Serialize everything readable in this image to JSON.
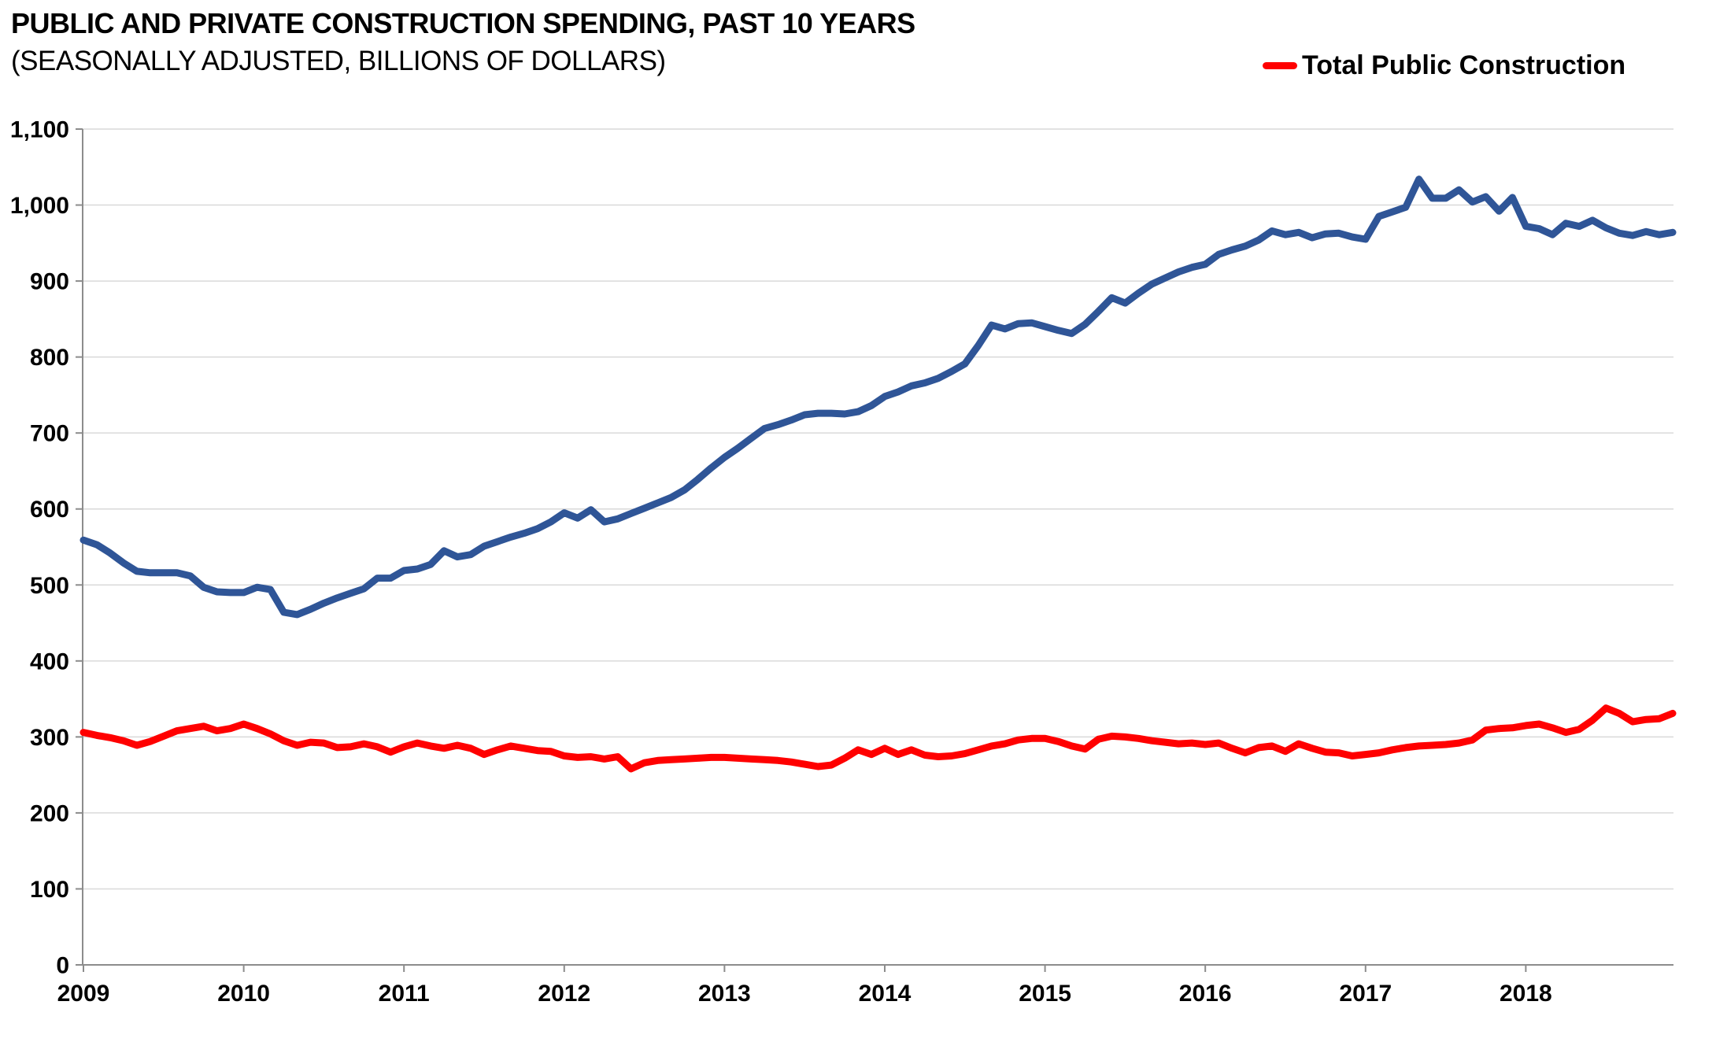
{
  "header": {
    "title": "PUBLIC AND PRIVATE CONSTRUCTION SPENDING, PAST 10 YEARS",
    "subtitle": "(SEASONALLY ADJUSTED, BILLIONS OF DOLLARS)"
  },
  "legend": {
    "label": "Total Public Construction",
    "color": "#FF0000"
  },
  "chart_data": {
    "type": "line",
    "title": "PUBLIC AND PRIVATE CONSTRUCTION SPENDING, PAST 10 YEARS",
    "subtitle": "(SEASONALLY ADJUSTED, BILLIONS OF DOLLARS)",
    "frequency": "monthly",
    "x_start": "2009-01",
    "x_end": "2018-12",
    "ylim": [
      0,
      1100
    ],
    "y_step": 100,
    "grid": "horizontal",
    "legend_position": "top-right",
    "y_tick_labels": [
      "0",
      "100",
      "200",
      "300",
      "400",
      "500",
      "600",
      "700",
      "800",
      "900",
      "1,000",
      "1,100"
    ],
    "x_tick_labels": [
      "2009",
      "2010",
      "2011",
      "2012",
      "2013",
      "2014",
      "2015",
      "2016",
      "2017",
      "2018"
    ],
    "colors": {
      "public_series": "#FF0000",
      "private_series": "#2F5597",
      "grid": "#D9D9D9",
      "axis": "#8C8C8C",
      "text": "#000000"
    },
    "series": [
      {
        "name": "unlabeled-blue-line",
        "in_legend": false,
        "color": "#2F5597",
        "values": [
          559,
          553,
          542,
          529,
          518,
          516,
          516,
          516,
          512,
          497,
          491,
          490,
          490,
          497,
          494,
          464,
          461,
          468,
          476,
          483,
          489,
          495,
          509,
          509,
          519,
          521,
          527,
          545,
          537,
          540,
          551,
          557,
          563,
          568,
          574,
          583,
          595,
          588,
          599,
          583,
          587,
          594,
          601,
          608,
          615,
          625,
          639,
          654,
          668,
          680,
          693,
          706,
          711,
          717,
          724,
          726,
          726,
          725,
          728,
          736,
          748,
          754,
          762,
          766,
          772,
          781,
          791,
          815,
          842,
          837,
          844,
          845,
          840,
          835,
          831,
          843,
          860,
          878,
          871,
          884,
          896,
          904,
          912,
          918,
          922,
          935,
          941,
          946,
          954,
          966,
          961,
          964,
          957,
          962,
          963,
          958,
          955,
          985,
          991,
          997,
          1034,
          1009,
          1009,
          1020,
          1004,
          1011,
          992,
          1010,
          972,
          969,
          961,
          976,
          972,
          980,
          970,
          963,
          960,
          965,
          961,
          964
        ]
      },
      {
        "name": "Total Public Construction",
        "in_legend": true,
        "color": "#FF0000",
        "values": [
          306,
          302,
          299,
          295,
          289,
          294,
          301,
          308,
          311,
          314,
          308,
          311,
          317,
          311,
          304,
          295,
          289,
          293,
          292,
          286,
          287,
          291,
          287,
          280,
          287,
          292,
          288,
          285,
          289,
          285,
          277,
          283,
          288,
          285,
          282,
          281,
          275,
          273,
          274,
          271,
          274,
          258,
          266,
          269,
          270,
          271,
          272,
          273,
          273,
          272,
          271,
          270,
          269,
          267,
          264,
          261,
          263,
          272,
          283,
          277,
          285,
          277,
          283,
          276,
          274,
          275,
          278,
          283,
          288,
          291,
          296,
          298,
          298,
          294,
          288,
          284,
          297,
          301,
          300,
          298,
          295,
          293,
          291,
          292,
          290,
          292,
          285,
          279,
          286,
          288,
          281,
          291,
          285,
          280,
          279,
          275,
          277,
          279,
          283,
          286,
          288,
          289,
          290,
          292,
          296,
          309,
          311,
          312,
          315,
          317,
          312,
          306,
          310,
          322,
          338,
          331,
          320,
          323,
          324,
          331
        ]
      }
    ]
  }
}
